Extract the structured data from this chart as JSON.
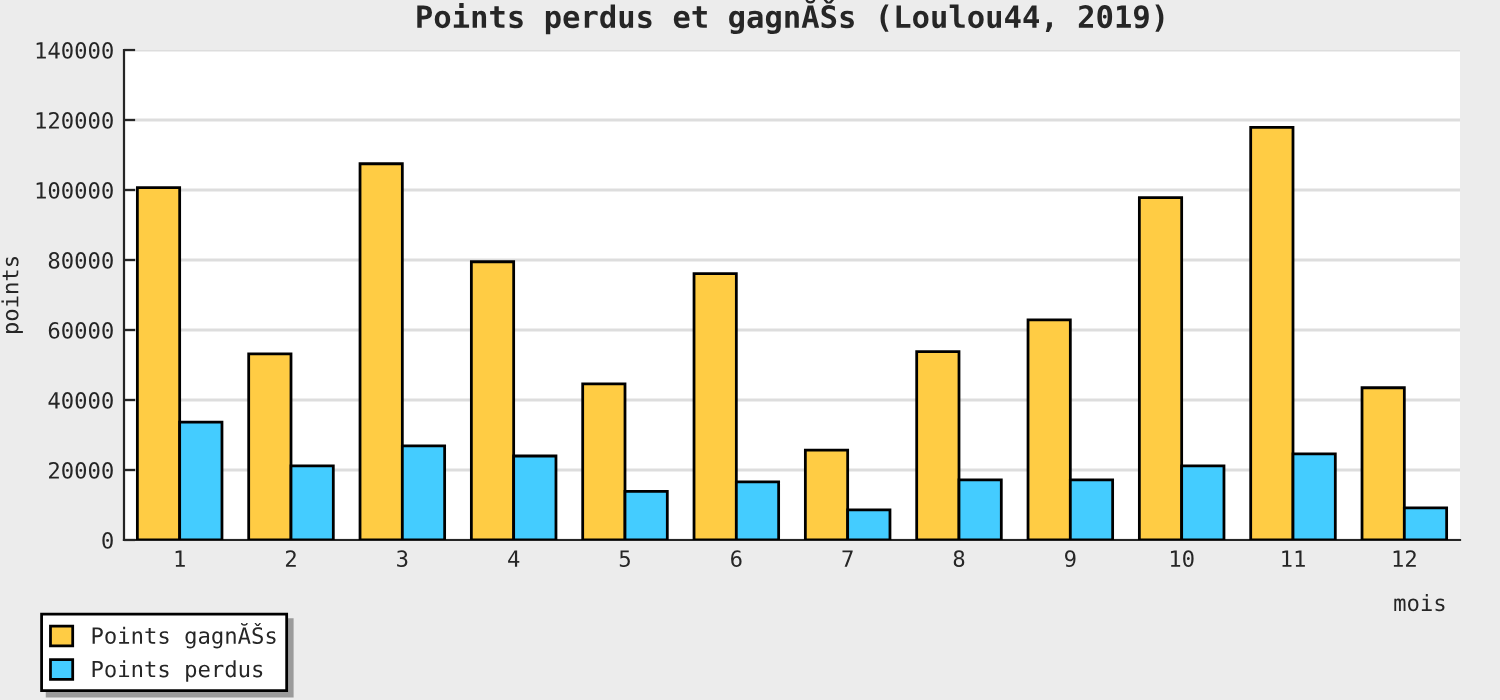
{
  "chart_data": {
    "type": "bar",
    "title": "Points perdus et gagnĂŠs (Loulou44, 2019)",
    "xlabel": "mois",
    "ylabel": "points",
    "categories": [
      "1",
      "2",
      "3",
      "4",
      "5",
      "6",
      "7",
      "8",
      "9",
      "10",
      "11",
      "12"
    ],
    "series": [
      {
        "name": "Points gagnĂŠs",
        "color": "#ffcc44",
        "values": [
          100700,
          53200,
          107500,
          79500,
          44600,
          76100,
          25700,
          53800,
          62900,
          97800,
          117900,
          43500
        ]
      },
      {
        "name": "Points perdus",
        "color": "#44ccff",
        "values": [
          33700,
          21200,
          26900,
          24000,
          13900,
          16600,
          8600,
          17200,
          17200,
          21200,
          24600,
          9200
        ]
      }
    ],
    "ylim": [
      0,
      140000
    ],
    "yticks": [
      0,
      20000,
      40000,
      60000,
      80000,
      100000,
      120000,
      140000
    ],
    "grid": "y",
    "legend": "bottom left"
  }
}
